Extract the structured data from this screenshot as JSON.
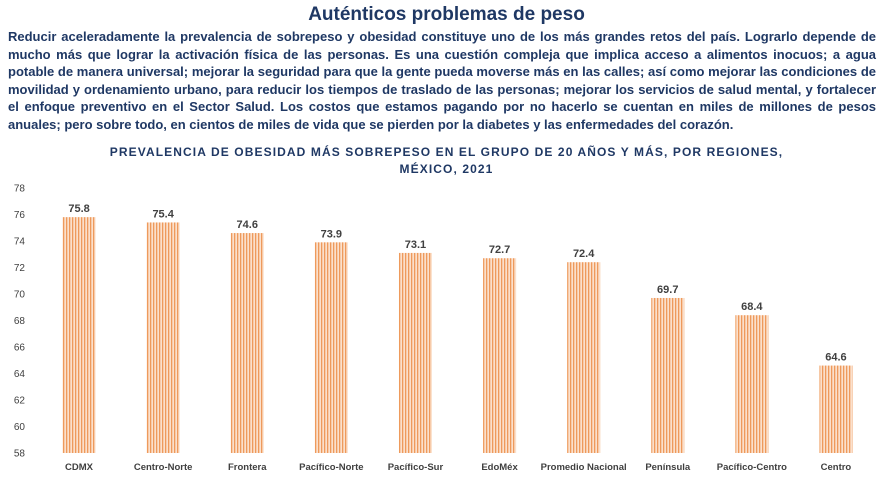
{
  "headline": "Auténticos problemas de peso",
  "intro": "Reducir aceleradamente la prevalencia de sobrepeso y obesidad constituye uno de los más grandes retos del país. Lograrlo depende de mucho más que lograr la activación física de las personas. Es una cuestión compleja que implica acceso a alimentos inocuos; a agua potable de manera universal; mejorar la seguridad para que la gente pueda moverse más en las calles; así como mejorar las condiciones de movilidad y ordenamiento urbano, para reducir los tiempos de traslado de las personas; mejorar los servicios de salud mental, y fortalecer el enfoque preventivo en el Sector Salud. Los costos que estamos pagando por no hacerlo se cuentan en miles de millones de pesos anuales; pero sobre todo, en cientos de miles de vida que se pierden por la diabetes y las enfermedades del corazón.",
  "colors": {
    "text": "#1f3864",
    "bar_fill": "#fbe0cc",
    "bar_stripe": "#ee9a5c",
    "axis_text": "#404040"
  },
  "chart_data": {
    "type": "bar",
    "title_line1": "PREVALENCIA DE OBESIDAD MÁS SOBREPESO EN EL GRUPO DE 20 AÑOS Y MÁS, POR REGIONES,",
    "title_line2": "MÉXICO, 2021",
    "categories": [
      "CDMX",
      "Centro-Norte",
      "Frontera",
      "Pacífico-Norte",
      "Pacífico-Sur",
      "EdoMéx",
      "Promedio Nacional",
      "Península",
      "Pacífico-Centro",
      "Centro"
    ],
    "values": [
      75.8,
      75.4,
      74.6,
      73.9,
      73.1,
      72.7,
      72.4,
      69.7,
      68.4,
      64.6
    ],
    "ylim": [
      58,
      78
    ],
    "yticks": [
      58,
      60,
      62,
      64,
      66,
      68,
      70,
      72,
      74,
      76,
      78
    ],
    "grid": false,
    "data_labels": true,
    "fill_pattern": "vertical-stripes"
  }
}
